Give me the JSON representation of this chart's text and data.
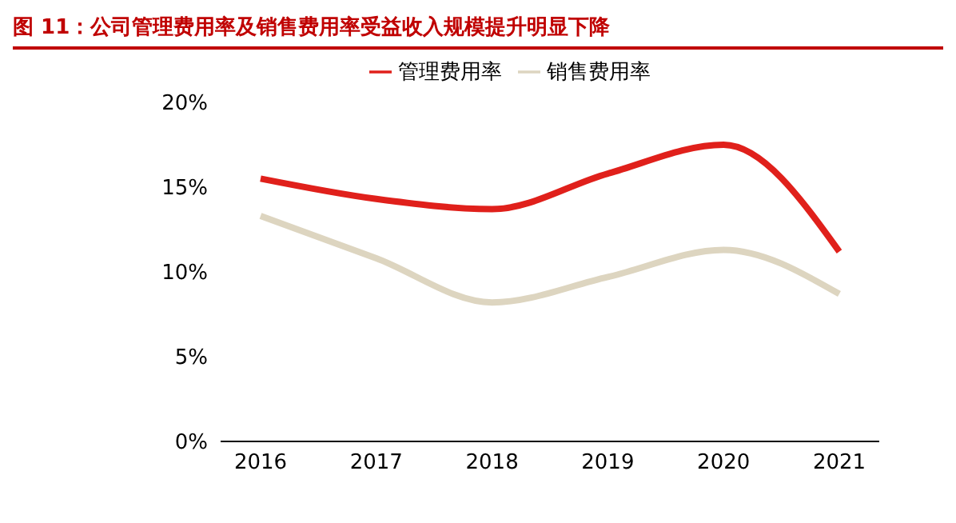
{
  "chart_data": {
    "type": "line",
    "title": "图 11：公司管理费用率及销售费用率受益收入规模提升明显下降",
    "categories": [
      "2016",
      "2017",
      "2018",
      "2019",
      "2020",
      "2021"
    ],
    "series": [
      {
        "name": "管理费用率",
        "color": "#e0201b",
        "values": [
          15.5,
          14.3,
          13.7,
          15.8,
          17.5,
          11.2
        ]
      },
      {
        "name": "销售费用率",
        "color": "#ddd5c0",
        "values": [
          13.3,
          10.8,
          8.2,
          9.7,
          11.3,
          8.7
        ]
      }
    ],
    "ylim": [
      0,
      20
    ],
    "yticks": [
      {
        "value": 0,
        "label": "0%"
      },
      {
        "value": 5,
        "label": "5%"
      },
      {
        "value": 10,
        "label": "10%"
      },
      {
        "value": 15,
        "label": "15%"
      },
      {
        "value": 20,
        "label": "20%"
      }
    ],
    "grid": false,
    "legend": "top",
    "marker": "none",
    "line_style": "solid"
  }
}
